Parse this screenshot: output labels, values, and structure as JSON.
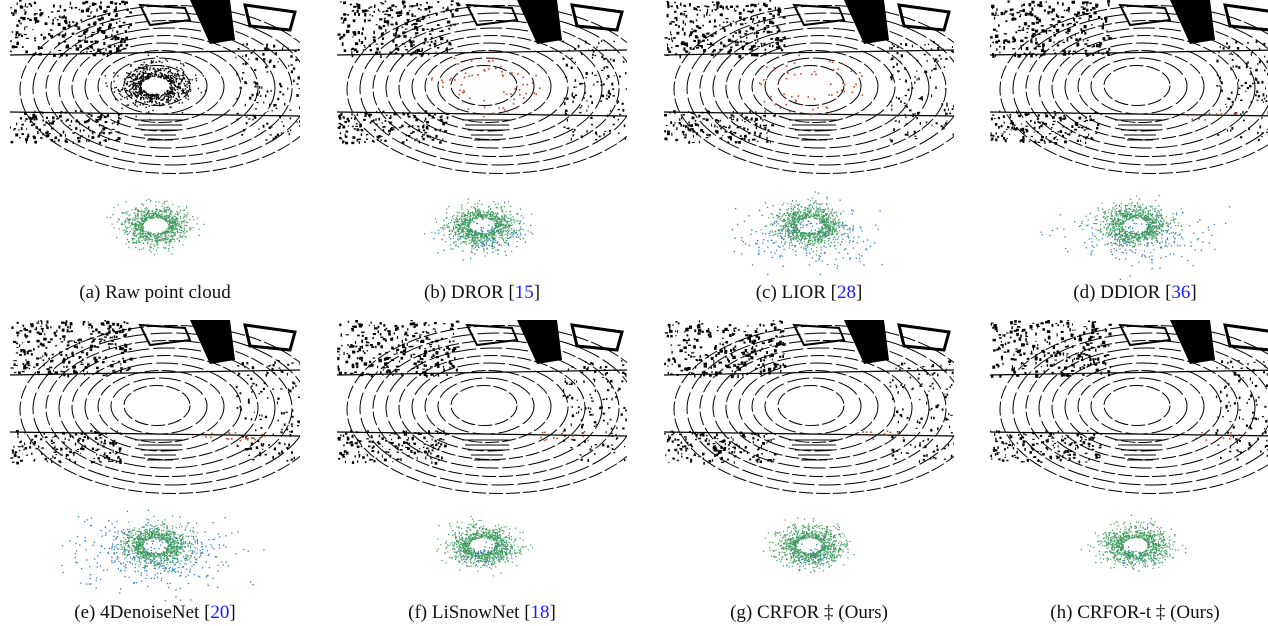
{
  "panels": [
    {
      "letter": "(a)",
      "method": "Raw point cloud",
      "ref": "",
      "suffix": "",
      "raw": true,
      "red": 0,
      "blue": 0,
      "spread": 0
    },
    {
      "letter": "(b)",
      "method": "DROR",
      "ref": "15",
      "suffix": "",
      "raw": false,
      "red": 70,
      "blue": 160,
      "spread": 0.55
    },
    {
      "letter": "(c)",
      "method": "LIOR",
      "ref": "28",
      "suffix": "",
      "raw": false,
      "red": 60,
      "blue": 260,
      "spread": 0.9
    },
    {
      "letter": "(d)",
      "method": "DDIOR",
      "ref": "36",
      "suffix": "",
      "raw": false,
      "red": 10,
      "blue": 240,
      "spread": 0.85
    },
    {
      "letter": "(e)",
      "method": "4DenoiseNet",
      "ref": "20",
      "suffix": "",
      "raw": false,
      "red": 18,
      "blue": 420,
      "spread": 1.0
    },
    {
      "letter": "(f)",
      "method": "LiSnowNet",
      "ref": "18",
      "suffix": "",
      "raw": false,
      "red": 14,
      "blue": 90,
      "spread": 0.35
    },
    {
      "letter": "(g)",
      "method": "CRFOR ‡",
      "ref": "",
      "suffix": "(Ours)",
      "raw": false,
      "red": 10,
      "blue": 60,
      "spread": 0.3
    },
    {
      "letter": "(h)",
      "method": "CRFOR-t ‡",
      "ref": "",
      "suffix": "(Ours)",
      "raw": false,
      "red": 8,
      "blue": 40,
      "spread": 0.25
    }
  ],
  "colors": {
    "structure": "#000000",
    "snow_removed": "#c0462a",
    "noise": "#2f7fc1",
    "snow": "#3f9a5c",
    "ref_link": "#1a1aff"
  }
}
